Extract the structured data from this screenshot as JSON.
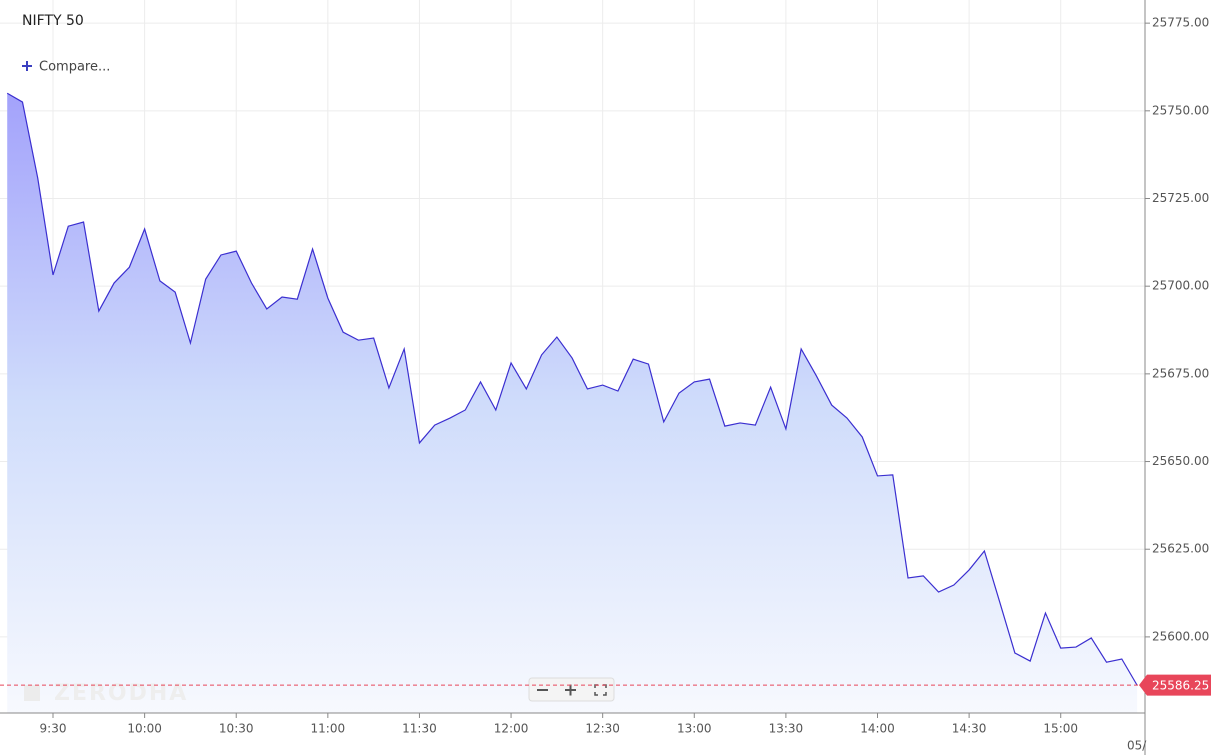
{
  "chart_data": {
    "type": "area",
    "title": "NIFTY 50",
    "compare_label": "Compare...",
    "watermark": "ZERODHA",
    "date_label": "05/",
    "color": "#3b2fd0",
    "grid": true,
    "x": [
      555,
      560,
      565,
      570,
      575,
      580,
      585,
      590,
      595,
      600,
      605,
      610,
      615,
      620,
      625,
      630,
      635,
      640,
      645,
      650,
      655,
      660,
      665,
      670,
      675,
      680,
      685,
      690,
      695,
      700,
      705,
      710,
      715,
      720,
      725,
      730,
      735,
      740,
      745,
      750,
      755,
      760,
      765,
      770,
      775,
      780,
      785,
      790,
      795,
      800,
      805,
      810,
      815,
      820,
      825,
      830,
      835,
      840,
      845,
      850,
      855,
      860,
      865,
      870,
      875,
      880,
      885,
      890,
      895,
      900,
      905,
      910,
      915,
      920,
      925
    ],
    "values": [
      25755.0,
      25752.5,
      25730.8,
      25703.2,
      25717.1,
      25718.3,
      25692.9,
      25700.9,
      25705.4,
      25716.3,
      25701.5,
      25698.3,
      25683.8,
      25702.0,
      25708.9,
      25710.0,
      25700.9,
      25693.5,
      25696.9,
      25696.3,
      25710.6,
      25696.6,
      25686.9,
      25684.6,
      25685.2,
      25671.0,
      25682.1,
      25655.3,
      25660.4,
      25662.4,
      25664.7,
      25672.7,
      25664.7,
      25678.1,
      25670.7,
      25680.4,
      25685.5,
      25679.5,
      25670.7,
      25671.8,
      25670.1,
      25679.2,
      25677.8,
      25661.3,
      25669.5,
      25672.7,
      25673.5,
      25660.1,
      25661.0,
      25660.4,
      25671.2,
      25659.3,
      25682.1,
      25674.4,
      25666.1,
      25662.4,
      25657.0,
      25645.9,
      25646.2,
      25616.8,
      25617.4,
      25612.8,
      25614.8,
      25619.1,
      25624.5,
      25610.0,
      25595.4,
      25593.1,
      25606.8,
      25596.8,
      25597.1,
      25599.7,
      25592.8,
      25593.7,
      25586.25
    ],
    "last_price": 25586.25,
    "xlim": [
      552.64,
      927.6
    ],
    "ylim": [
      25578.3,
      25781.6
    ],
    "xticks": [
      {
        "value": 570,
        "label": "9:30"
      },
      {
        "value": 600,
        "label": "10:00"
      },
      {
        "value": 630,
        "label": "10:30"
      },
      {
        "value": 660,
        "label": "11:00"
      },
      {
        "value": 690,
        "label": "11:30"
      },
      {
        "value": 720,
        "label": "12:00"
      },
      {
        "value": 750,
        "label": "12:30"
      },
      {
        "value": 780,
        "label": "13:00"
      },
      {
        "value": 810,
        "label": "13:30"
      },
      {
        "value": 840,
        "label": "14:00"
      },
      {
        "value": 870,
        "label": "14:30"
      },
      {
        "value": 900,
        "label": "15:00"
      }
    ],
    "yticks": [
      {
        "value": 25600,
        "label": "25600.00"
      },
      {
        "value": 25625,
        "label": "25625.00"
      },
      {
        "value": 25650,
        "label": "25650.00"
      },
      {
        "value": 25675,
        "label": "25675.00"
      },
      {
        "value": 25700,
        "label": "25700.00"
      },
      {
        "value": 25725,
        "label": "25725.00"
      },
      {
        "value": 25750,
        "label": "25750.00"
      },
      {
        "value": 25775,
        "label": "25775.00"
      }
    ]
  }
}
